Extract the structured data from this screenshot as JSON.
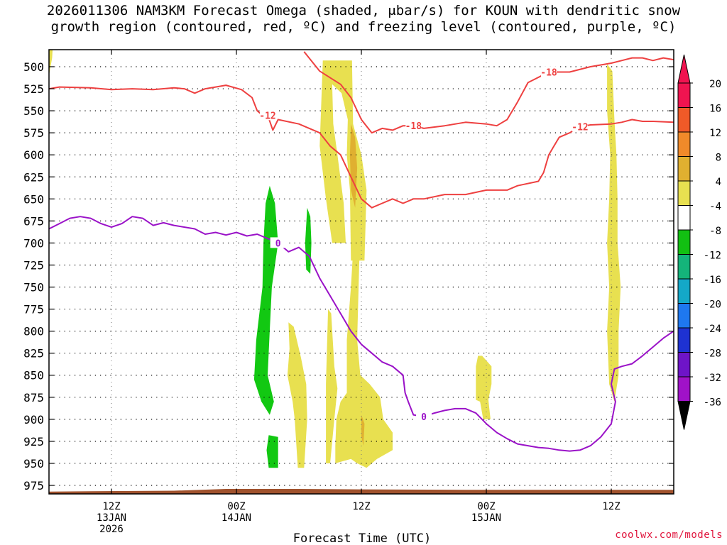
{
  "title_line1": "2026011306 NAM3KM Forecast Omega (shaded, μbar/s) for KOUN with dendritic snow",
  "title_line2": "growth region (contoured, red, ºC) and freezing level (contoured, purple, ºC)",
  "credit": "coolwx.com/models",
  "chart_data": {
    "type": "heatmap",
    "xlabel": "Forecast Time (UTC)",
    "ylabel": "",
    "x_hours_range": [
      0,
      60
    ],
    "y_pressure_levels": [
      500,
      525,
      550,
      575,
      600,
      625,
      650,
      675,
      700,
      725,
      750,
      775,
      800,
      825,
      850,
      875,
      900,
      925,
      950,
      975
    ],
    "y_range": [
      483,
      993
    ],
    "x_ticks": [
      {
        "hour": 6,
        "lines": [
          "12Z",
          "13JAN",
          "2026"
        ]
      },
      {
        "hour": 18,
        "lines": [
          "00Z",
          "14JAN"
        ]
      },
      {
        "hour": 30,
        "lines": [
          "12Z"
        ]
      },
      {
        "hour": 42,
        "lines": [
          "00Z",
          "15JAN"
        ]
      },
      {
        "hour": 54,
        "lines": [
          "12Z"
        ]
      }
    ],
    "colorbar": {
      "labels": [
        20,
        16,
        12,
        8,
        4,
        -4,
        -8,
        -12,
        -16,
        -20,
        -24,
        -28,
        -32,
        -36
      ],
      "colors": [
        "#f01450",
        "#f05a28",
        "#f08a2a",
        "#e0b030",
        "#e8e050",
        "#ffffff",
        "#12c012",
        "#14b47a",
        "#14a8c8",
        "#1e78f0",
        "#1e32d2",
        "#6e14c8",
        "#a012c8",
        "#a0a0a0"
      ]
    },
    "colors": {
      "dgz": "#ee4040",
      "freezing": "#9a12c8",
      "ground": "#a0522d",
      "omega_up_weak": "#e8e050",
      "omega_up_mod": "#e0b030",
      "omega_up_strong": "#f08a2a",
      "omega_down": "#12c812"
    },
    "omega_regions": [
      {
        "value": 6,
        "pts": [
          [
            26.3,
            493
          ],
          [
            29.1,
            493
          ],
          [
            29.2,
            565
          ],
          [
            30.0,
            600
          ],
          [
            30.5,
            640
          ],
          [
            30.3,
            720
          ],
          [
            29.0,
            720
          ],
          [
            28.9,
            640
          ],
          [
            28.6,
            600
          ],
          [
            28.7,
            560
          ],
          [
            28.1,
            530
          ],
          [
            27.2,
            520
          ],
          [
            27.3,
            565
          ],
          [
            27.7,
            600
          ],
          [
            28.3,
            655
          ],
          [
            28.5,
            700
          ],
          [
            27.2,
            700
          ],
          [
            26.6,
            650
          ],
          [
            26.0,
            590
          ]
        ]
      },
      {
        "value": 6,
        "pts": [
          [
            29.3,
            690
          ],
          [
            29.8,
            720
          ],
          [
            29.6,
            810
          ],
          [
            29.9,
            850
          ],
          [
            30.8,
            860
          ],
          [
            31.8,
            875
          ],
          [
            32.1,
            900
          ],
          [
            33.0,
            915
          ],
          [
            33.0,
            935
          ],
          [
            31.5,
            945
          ],
          [
            30.5,
            955
          ],
          [
            29.6,
            950
          ],
          [
            29.0,
            945
          ],
          [
            27.5,
            950
          ],
          [
            27.5,
            930
          ],
          [
            27.6,
            900
          ],
          [
            28.0,
            880
          ],
          [
            28.6,
            870
          ],
          [
            28.6,
            810
          ],
          [
            29.0,
            750
          ]
        ]
      },
      {
        "value": 6,
        "pts": [
          [
            26.8,
            775
          ],
          [
            27.1,
            780
          ],
          [
            27.4,
            840
          ],
          [
            27.7,
            865
          ],
          [
            27.4,
            900
          ],
          [
            27.0,
            950
          ],
          [
            26.6,
            950
          ],
          [
            26.6,
            860
          ]
        ]
      },
      {
        "value": 6,
        "pts": [
          [
            23.0,
            790
          ],
          [
            23.5,
            795
          ],
          [
            24.2,
            830
          ],
          [
            24.7,
            860
          ],
          [
            24.8,
            900
          ],
          [
            24.5,
            955
          ],
          [
            23.9,
            955
          ],
          [
            23.6,
            900
          ],
          [
            23.4,
            880
          ],
          [
            22.9,
            850
          ],
          [
            23.1,
            820
          ]
        ]
      },
      {
        "value": 6,
        "pts": [
          [
            41.2,
            828
          ],
          [
            41.6,
            828
          ],
          [
            42.5,
            840
          ],
          [
            42.5,
            860
          ],
          [
            42.2,
            878
          ],
          [
            42.4,
            900
          ],
          [
            41.7,
            900
          ],
          [
            41.4,
            880
          ],
          [
            41.0,
            878
          ],
          [
            41.0,
            840
          ]
        ]
      },
      {
        "value": 6,
        "pts": [
          [
            53.6,
            497
          ],
          [
            54.1,
            505
          ],
          [
            54.3,
            560
          ],
          [
            54.5,
            600
          ],
          [
            54.6,
            650
          ],
          [
            54.6,
            700
          ],
          [
            54.9,
            750
          ],
          [
            54.7,
            800
          ],
          [
            54.7,
            850
          ],
          [
            54.3,
            880
          ],
          [
            53.8,
            860
          ],
          [
            53.6,
            800
          ],
          [
            53.8,
            750
          ],
          [
            53.6,
            700
          ],
          [
            53.8,
            650
          ],
          [
            53.9,
            600
          ],
          [
            53.6,
            550
          ]
        ]
      },
      {
        "value": 6,
        "pts": [
          [
            0.0,
            470
          ],
          [
            0.4,
            470
          ],
          [
            0.3,
            490
          ],
          [
            0.0,
            510
          ]
        ]
      },
      {
        "value": 10,
        "pts": [
          [
            29.0,
            565
          ],
          [
            29.4,
            580
          ],
          [
            29.6,
            615
          ],
          [
            29.4,
            660
          ],
          [
            29.0,
            640
          ],
          [
            28.9,
            600
          ]
        ]
      },
      {
        "value": 10,
        "pts": [
          [
            30.0,
            895
          ],
          [
            30.3,
            905
          ],
          [
            30.2,
            930
          ],
          [
            30.0,
            920
          ]
        ]
      },
      {
        "value": -6,
        "pts": [
          [
            21.2,
            635
          ],
          [
            21.7,
            655
          ],
          [
            22.0,
            700
          ],
          [
            21.4,
            750
          ],
          [
            21.2,
            800
          ],
          [
            21.0,
            850
          ],
          [
            21.6,
            880
          ],
          [
            21.2,
            895
          ],
          [
            20.4,
            880
          ],
          [
            19.7,
            855
          ],
          [
            19.9,
            810
          ],
          [
            20.5,
            750
          ],
          [
            20.6,
            700
          ],
          [
            20.8,
            655
          ]
        ]
      },
      {
        "value": -6,
        "pts": [
          [
            21.1,
            918
          ],
          [
            22.0,
            920
          ],
          [
            22.0,
            955
          ],
          [
            21.1,
            955
          ],
          [
            20.9,
            935
          ]
        ]
      },
      {
        "value": -6,
        "pts": [
          [
            24.8,
            660
          ],
          [
            25.1,
            670
          ],
          [
            25.2,
            700
          ],
          [
            25.1,
            735
          ],
          [
            24.7,
            730
          ],
          [
            24.6,
            700
          ]
        ]
      }
    ],
    "dgz_contours": [
      {
        "label": "-12",
        "pts": [
          [
            0,
            525
          ],
          [
            1,
            523
          ],
          [
            4,
            524
          ],
          [
            6,
            526
          ],
          [
            8,
            525
          ],
          [
            10,
            526
          ],
          [
            12,
            524
          ],
          [
            13,
            525
          ],
          [
            14,
            530
          ],
          [
            15,
            525
          ],
          [
            16,
            523
          ],
          [
            17,
            521
          ],
          [
            18.5,
            526
          ],
          [
            19.5,
            535
          ],
          [
            20.0,
            550
          ],
          [
            20.5,
            555
          ],
          [
            21.0,
            555
          ],
          [
            21.5,
            572
          ],
          [
            22.0,
            560
          ],
          [
            24.0,
            565
          ],
          [
            26.0,
            575
          ],
          [
            27.0,
            590
          ],
          [
            28.0,
            600
          ],
          [
            29.0,
            625
          ],
          [
            30.0,
            650
          ],
          [
            31.0,
            660
          ],
          [
            32.0,
            655
          ],
          [
            33.0,
            650
          ],
          [
            34.0,
            655
          ],
          [
            35.0,
            650
          ],
          [
            36.0,
            650
          ],
          [
            38.0,
            645
          ],
          [
            40.0,
            645
          ],
          [
            42.0,
            640
          ],
          [
            44.0,
            640
          ],
          [
            45.0,
            635
          ],
          [
            47.0,
            630
          ],
          [
            47.5,
            620
          ],
          [
            48.0,
            600
          ],
          [
            48.5,
            590
          ],
          [
            49.0,
            580
          ],
          [
            50.0,
            575
          ],
          [
            51.0,
            568
          ],
          [
            52.0,
            566
          ],
          [
            54.0,
            565
          ],
          [
            55.0,
            563
          ],
          [
            56.0,
            560
          ],
          [
            57.0,
            562
          ],
          [
            58.0,
            562
          ],
          [
            60.0,
            563
          ]
        ]
      },
      {
        "label": "-18",
        "pts": [
          [
            24.5,
            483
          ],
          [
            26.0,
            505
          ],
          [
            28.0,
            520
          ],
          [
            29.0,
            535
          ],
          [
            30.0,
            560
          ],
          [
            31.0,
            575
          ],
          [
            32.0,
            570
          ],
          [
            33.0,
            572
          ],
          [
            34.0,
            567
          ],
          [
            35.0,
            567
          ],
          [
            36.0,
            570
          ],
          [
            38.0,
            567
          ],
          [
            40.0,
            563
          ],
          [
            42.0,
            565
          ],
          [
            43.0,
            567
          ],
          [
            44.0,
            560
          ],
          [
            45.0,
            540
          ],
          [
            46.0,
            518
          ],
          [
            48.0,
            506
          ],
          [
            50.0,
            506
          ],
          [
            52.0,
            500
          ],
          [
            54.0,
            496
          ],
          [
            55.0,
            493
          ],
          [
            56.0,
            490
          ],
          [
            57.0,
            490
          ],
          [
            58.0,
            493
          ],
          [
            59.0,
            490
          ],
          [
            60.0,
            492
          ]
        ]
      }
    ],
    "freezing_contour": {
      "label": "0",
      "pts": [
        [
          0,
          684
        ],
        [
          1,
          678
        ],
        [
          2,
          672
        ],
        [
          3,
          670
        ],
        [
          4,
          672
        ],
        [
          5,
          678
        ],
        [
          6,
          682
        ],
        [
          7,
          678
        ],
        [
          8,
          670
        ],
        [
          9,
          672
        ],
        [
          10,
          680
        ],
        [
          11,
          677
        ],
        [
          12,
          680
        ],
        [
          14,
          684
        ],
        [
          15,
          690
        ],
        [
          16,
          688
        ],
        [
          17,
          691
        ],
        [
          18,
          688
        ],
        [
          19,
          692
        ],
        [
          20,
          690
        ],
        [
          21,
          695
        ],
        [
          22,
          700
        ],
        [
          23,
          710
        ],
        [
          24,
          705
        ],
        [
          25,
          715
        ],
        [
          26,
          740
        ],
        [
          27,
          760
        ],
        [
          28,
          780
        ],
        [
          29,
          800
        ],
        [
          30,
          815
        ],
        [
          31,
          825
        ],
        [
          32,
          835
        ],
        [
          33,
          840
        ],
        [
          34,
          850
        ],
        [
          34.2,
          870
        ],
        [
          34.5,
          880
        ],
        [
          35.0,
          895
        ],
        [
          36.0,
          897
        ],
        [
          37.0,
          893
        ],
        [
          38.0,
          890
        ],
        [
          39.0,
          888
        ],
        [
          40.0,
          888
        ],
        [
          41.0,
          893
        ],
        [
          42.0,
          905
        ],
        [
          43.0,
          915
        ],
        [
          44.0,
          922
        ],
        [
          45.0,
          928
        ],
        [
          46.0,
          930
        ],
        [
          47.0,
          932
        ],
        [
          48.0,
          933
        ],
        [
          49.0,
          935
        ],
        [
          50.0,
          936
        ],
        [
          51.0,
          935
        ],
        [
          52.0,
          930
        ],
        [
          53.0,
          920
        ],
        [
          54.0,
          905
        ],
        [
          54.4,
          880
        ],
        [
          54.0,
          860
        ],
        [
          54.3,
          843
        ],
        [
          55.0,
          840
        ],
        [
          56.0,
          837
        ],
        [
          57.0,
          828
        ],
        [
          58.0,
          818
        ],
        [
          59.0,
          808
        ],
        [
          60.0,
          800
        ]
      ]
    },
    "ground_top": [
      [
        0,
        982
      ],
      [
        12,
        981
      ],
      [
        17,
        979
      ],
      [
        24,
        979
      ],
      [
        30,
        979.5
      ],
      [
        40,
        980
      ],
      [
        50,
        980
      ],
      [
        60,
        980
      ]
    ]
  }
}
